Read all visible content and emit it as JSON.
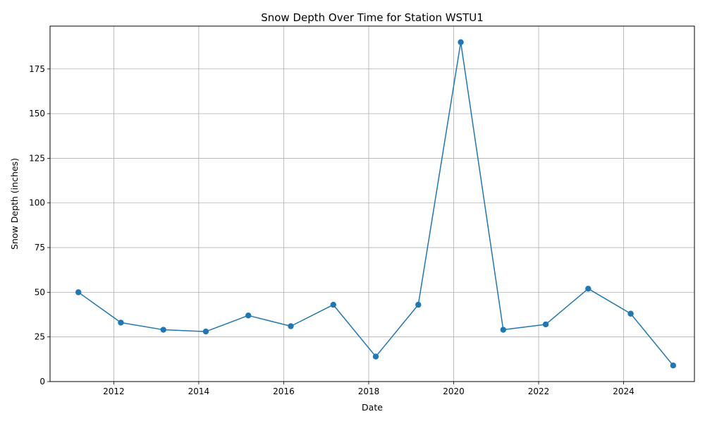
{
  "chart_data": {
    "type": "line",
    "title": "Snow Depth Over Time for Station WSTU1",
    "xlabel": "Date",
    "ylabel": "Snow Depth (inches)",
    "x_ticks": [
      "2012",
      "2014",
      "2016",
      "2018",
      "2020",
      "2022",
      "2024"
    ],
    "y_ticks": [
      "0",
      "25",
      "50",
      "75",
      "100",
      "125",
      "150",
      "175"
    ],
    "xlim": [
      "2010-07",
      "2025-09"
    ],
    "ylim": [
      0,
      199
    ],
    "grid": true,
    "series": [
      {
        "color": "#1f77b4",
        "marker": "circle",
        "points": [
          {
            "x": "2011-03",
            "y": 50
          },
          {
            "x": "2012-03",
            "y": 33
          },
          {
            "x": "2013-03",
            "y": 29
          },
          {
            "x": "2014-03",
            "y": 28
          },
          {
            "x": "2015-03",
            "y": 37
          },
          {
            "x": "2016-03",
            "y": 31
          },
          {
            "x": "2017-03",
            "y": 43
          },
          {
            "x": "2018-03",
            "y": 14
          },
          {
            "x": "2019-03",
            "y": 43
          },
          {
            "x": "2020-03",
            "y": 190
          },
          {
            "x": "2021-03",
            "y": 29
          },
          {
            "x": "2022-03",
            "y": 32
          },
          {
            "x": "2023-03",
            "y": 52
          },
          {
            "x": "2024-03",
            "y": 38
          },
          {
            "x": "2025-03",
            "y": 9
          }
        ]
      }
    ]
  }
}
